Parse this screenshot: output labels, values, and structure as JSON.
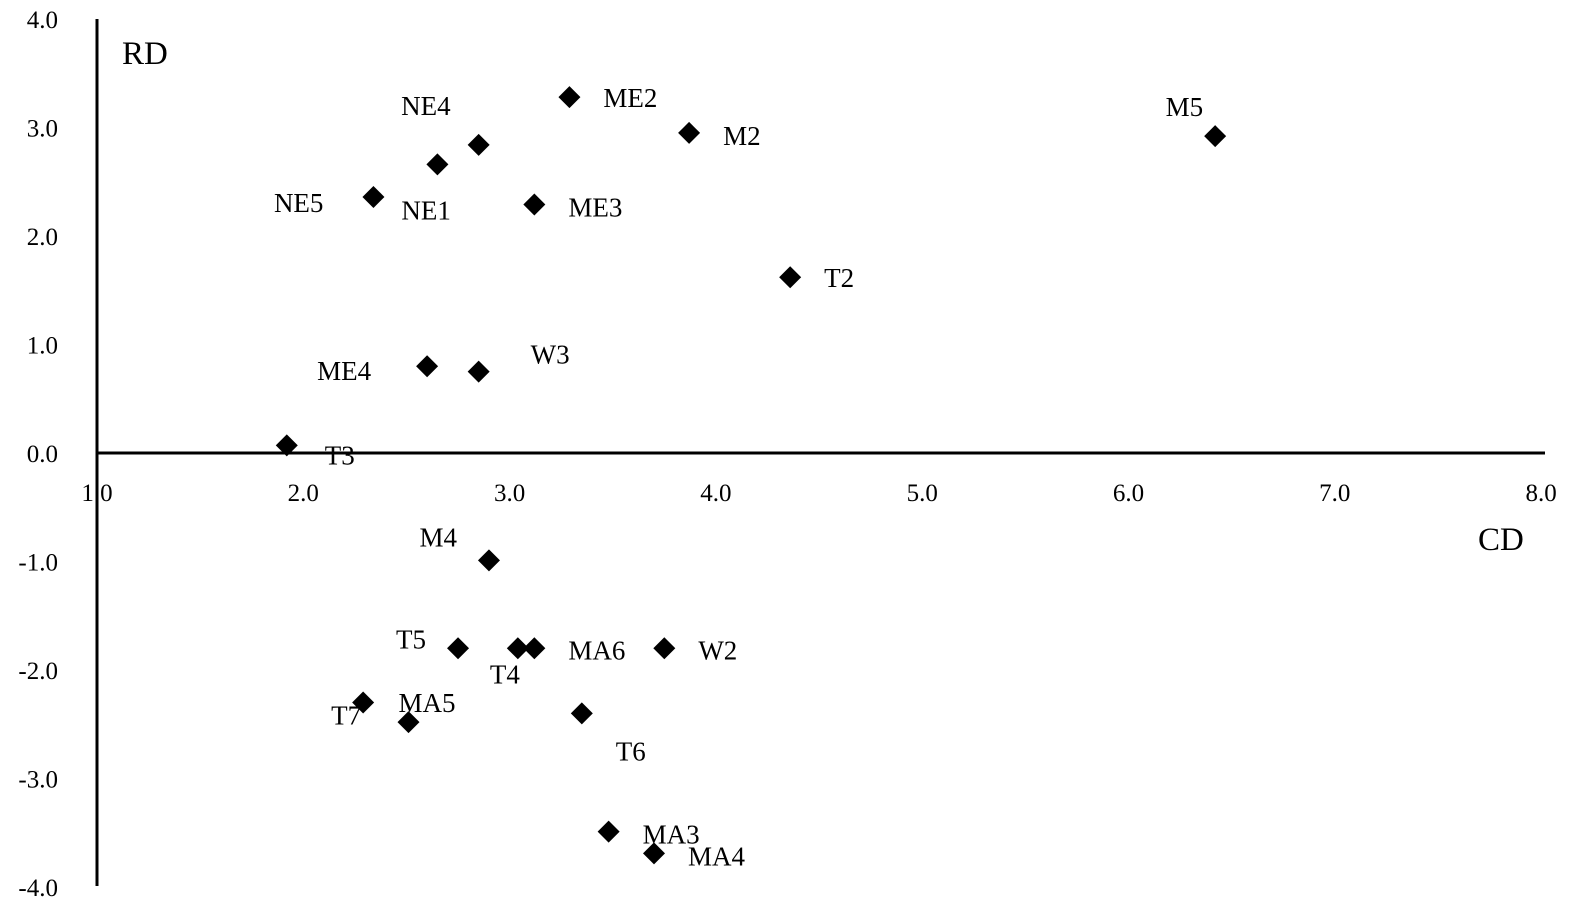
{
  "chart_data": {
    "type": "scatter",
    "xlabel": "CD",
    "ylabel": "RD",
    "xlim": [
      1.0,
      8.0
    ],
    "ylim": [
      -4.0,
      4.0
    ],
    "x_ticks": [
      "1.0",
      "2.0",
      "3.0",
      "4.0",
      "5.0",
      "6.0",
      "7.0",
      "8.0"
    ],
    "y_ticks": [
      "4.0",
      "3.0",
      "2.0",
      "1.0",
      "0.0",
      "-1.0",
      "-2.0",
      "-3.0",
      "-4.0"
    ],
    "marker": "diamond",
    "marker_color": "#000000",
    "points": [
      {
        "label": "ME2",
        "x": 3.29,
        "y": 3.28
      },
      {
        "label": "M2",
        "x": 3.87,
        "y": 2.95
      },
      {
        "label": "M5",
        "x": 6.42,
        "y": 2.92
      },
      {
        "label": "NE4",
        "x": 2.85,
        "y": 2.84
      },
      {
        "label": "NE1",
        "x": 2.65,
        "y": 2.66
      },
      {
        "label": "NE5",
        "x": 2.34,
        "y": 2.36
      },
      {
        "label": "ME3",
        "x": 3.12,
        "y": 2.29
      },
      {
        "label": "T2",
        "x": 4.36,
        "y": 1.62
      },
      {
        "label": "ME4",
        "x": 2.6,
        "y": 0.8
      },
      {
        "label": "W3",
        "x": 2.85,
        "y": 0.75
      },
      {
        "label": "T3",
        "x": 1.92,
        "y": 0.07
      },
      {
        "label": "M4",
        "x": 2.9,
        "y": -0.99
      },
      {
        "label": "T5",
        "x": 2.75,
        "y": -1.8
      },
      {
        "label": "T4",
        "x": 3.04,
        "y": -1.8
      },
      {
        "label": "MA6",
        "x": 3.12,
        "y": -1.8
      },
      {
        "label": "W2",
        "x": 3.75,
        "y": -1.8
      },
      {
        "label": "T7",
        "x": 2.29,
        "y": -2.3
      },
      {
        "label": "MA5",
        "x": 2.51,
        "y": -2.48
      },
      {
        "label": "T6",
        "x": 3.35,
        "y": -2.4
      },
      {
        "label": "MA3",
        "x": 3.48,
        "y": -3.49
      },
      {
        "label": "MA4",
        "x": 3.7,
        "y": -3.69
      }
    ]
  }
}
